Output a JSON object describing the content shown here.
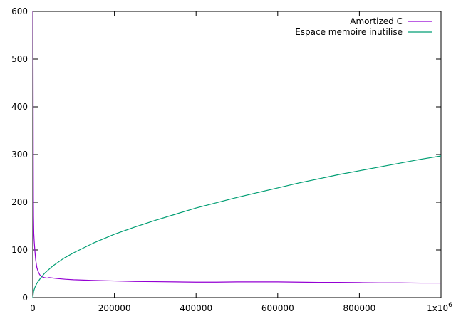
{
  "chart_data": {
    "type": "line",
    "title": "",
    "xlabel": "",
    "ylabel": "",
    "xlim": [
      0,
      1000000
    ],
    "ylim": [
      0,
      600
    ],
    "x_ticks": [
      0,
      200000,
      400000,
      600000,
      800000,
      1000000
    ],
    "x_tick_labels": [
      "0",
      "200000",
      "400000",
      "600000",
      "800000",
      "1x10"
    ],
    "x_tick_exponent": "6",
    "y_ticks": [
      0,
      100,
      200,
      300,
      400,
      500,
      600
    ],
    "y_tick_labels": [
      "0",
      "100",
      "200",
      "300",
      "400",
      "500",
      "600"
    ],
    "grid": false,
    "legend_position": "top-right",
    "series": [
      {
        "name": "Amortized C",
        "color": "#9400d3",
        "points": [
          [
            0,
            600
          ],
          [
            500,
            600
          ],
          [
            800,
            480
          ],
          [
            1200,
            300
          ],
          [
            1500,
            210
          ],
          [
            1800,
            170
          ],
          [
            2500,
            135
          ],
          [
            3500,
            118
          ],
          [
            5000,
            100
          ],
          [
            7000,
            80
          ],
          [
            10000,
            63
          ],
          [
            13000,
            55
          ],
          [
            17000,
            48
          ],
          [
            22000,
            44
          ],
          [
            28000,
            42
          ],
          [
            35000,
            41
          ],
          [
            40000,
            42
          ],
          [
            50000,
            41
          ],
          [
            60000,
            40
          ],
          [
            80000,
            38.5
          ],
          [
            100000,
            37.5
          ],
          [
            150000,
            36
          ],
          [
            200000,
            35
          ],
          [
            250000,
            34
          ],
          [
            300000,
            33.5
          ],
          [
            350000,
            33
          ],
          [
            400000,
            32.5
          ],
          [
            450000,
            32.5
          ],
          [
            500000,
            33
          ],
          [
            550000,
            33
          ],
          [
            600000,
            33
          ],
          [
            650000,
            32.5
          ],
          [
            700000,
            32
          ],
          [
            750000,
            32
          ],
          [
            800000,
            31.5
          ],
          [
            850000,
            31
          ],
          [
            900000,
            31
          ],
          [
            950000,
            30.5
          ],
          [
            1000000,
            30.5
          ]
        ]
      },
      {
        "name": "Espace memoire inutilise",
        "color": "#009e73",
        "points": [
          [
            0,
            0
          ],
          [
            2000,
            13
          ],
          [
            5000,
            21
          ],
          [
            10000,
            30
          ],
          [
            20000,
            42
          ],
          [
            30000,
            52
          ],
          [
            50000,
            67
          ],
          [
            75000,
            82
          ],
          [
            100000,
            94
          ],
          [
            150000,
            115
          ],
          [
            200000,
            133
          ],
          [
            250000,
            148
          ],
          [
            300000,
            162
          ],
          [
            350000,
            175
          ],
          [
            400000,
            188
          ],
          [
            450000,
            199
          ],
          [
            500000,
            210
          ],
          [
            550000,
            220
          ],
          [
            600000,
            230
          ],
          [
            650000,
            240
          ],
          [
            700000,
            249
          ],
          [
            750000,
            258
          ],
          [
            800000,
            266
          ],
          [
            850000,
            274
          ],
          [
            900000,
            282
          ],
          [
            950000,
            290
          ],
          [
            1000000,
            297
          ]
        ]
      }
    ]
  }
}
